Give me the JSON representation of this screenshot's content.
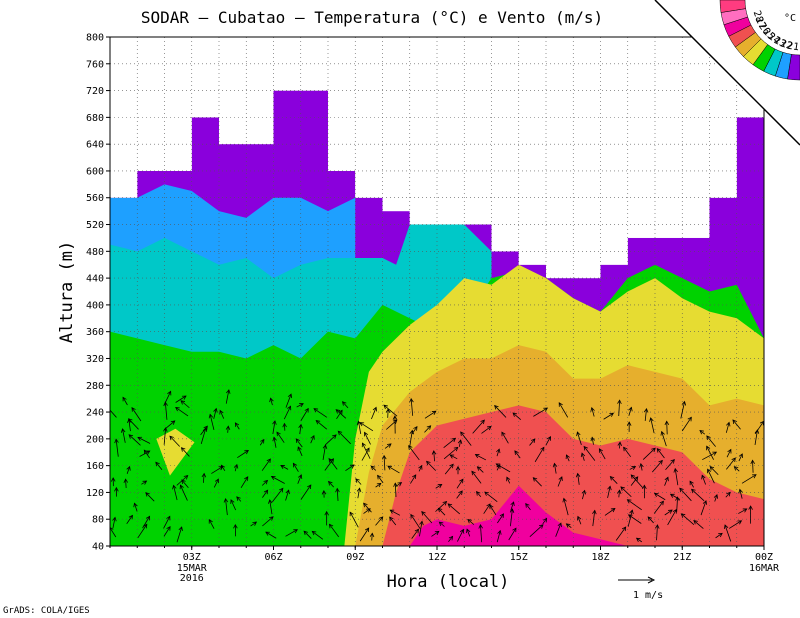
{
  "chart_data": {
    "type": "heatmap",
    "title": "SODAR – Cubatao – Temperatura (°C) e Vento (m/s)",
    "xlabel": "Hora (local)",
    "ylabel": "Altura (m)",
    "x_range_hours": [
      0,
      24
    ],
    "ylim": [
      40,
      800
    ],
    "y_ticks": [
      40,
      80,
      120,
      160,
      200,
      240,
      280,
      320,
      360,
      400,
      440,
      480,
      520,
      560,
      600,
      640,
      680,
      720,
      760,
      800
    ],
    "x_ticks": [
      {
        "hour": 3,
        "label": "03Z",
        "sub1": "15MAR",
        "sub2": "2016"
      },
      {
        "hour": 6,
        "label": "06Z",
        "sub1": "",
        "sub2": ""
      },
      {
        "hour": 9,
        "label": "09Z",
        "sub1": "",
        "sub2": ""
      },
      {
        "hour": 12,
        "label": "12Z",
        "sub1": "",
        "sub2": ""
      },
      {
        "hour": 15,
        "label": "15Z",
        "sub1": "",
        "sub2": ""
      },
      {
        "hour": 18,
        "label": "18Z",
        "sub1": "",
        "sub2": ""
      },
      {
        "hour": 21,
        "label": "21Z",
        "sub1": "",
        "sub2": ""
      },
      {
        "hour": 24,
        "label": "00Z",
        "sub1": "16MAR",
        "sub2": ""
      }
    ],
    "grid": true,
    "top_envelope_m": [
      [
        0,
        560
      ],
      [
        1,
        600
      ],
      [
        3,
        680
      ],
      [
        4,
        640
      ],
      [
        6,
        720
      ],
      [
        8,
        600
      ],
      [
        9,
        560
      ],
      [
        10,
        540
      ],
      [
        11,
        520
      ],
      [
        13,
        520
      ],
      [
        14,
        480
      ],
      [
        15,
        460
      ],
      [
        16,
        440
      ],
      [
        17,
        440
      ],
      [
        18,
        460
      ],
      [
        19,
        500
      ],
      [
        21,
        500
      ],
      [
        22,
        560
      ],
      [
        23,
        680
      ],
      [
        24,
        680
      ]
    ],
    "isotherm_bounds_m": [
      {
        "temp": 21,
        "pts": [
          [
            3,
            600
          ],
          [
            4,
            640
          ],
          [
            5,
            600
          ],
          [
            6,
            640
          ],
          [
            7,
            720
          ],
          [
            8,
            600
          ],
          [
            8.5,
            600
          ]
        ]
      },
      {
        "temp": 22,
        "pts": [
          [
            0,
            560
          ],
          [
            1,
            560
          ],
          [
            2,
            580
          ],
          [
            3,
            570
          ],
          [
            4,
            540
          ],
          [
            5,
            530
          ],
          [
            6,
            560
          ],
          [
            7,
            560
          ],
          [
            8,
            540
          ],
          [
            9,
            560
          ]
        ]
      },
      {
        "temp": 23,
        "pts": [
          [
            0,
            490
          ],
          [
            1,
            480
          ],
          [
            2,
            500
          ],
          [
            3,
            480
          ],
          [
            4,
            460
          ],
          [
            5,
            470
          ],
          [
            6,
            440
          ],
          [
            7,
            460
          ],
          [
            8,
            470
          ],
          [
            9,
            470
          ],
          [
            10,
            470
          ],
          [
            10.5,
            460
          ],
          [
            11,
            520
          ],
          [
            12,
            520
          ],
          [
            13,
            520
          ],
          [
            14,
            480
          ]
        ]
      },
      {
        "temp": 24,
        "pts": [
          [
            0,
            360
          ],
          [
            1,
            350
          ],
          [
            2,
            340
          ],
          [
            3,
            330
          ],
          [
            4,
            330
          ],
          [
            5,
            320
          ],
          [
            6,
            340
          ],
          [
            7,
            320
          ],
          [
            8,
            360
          ],
          [
            9,
            350
          ],
          [
            10,
            400
          ],
          [
            11,
            380
          ],
          [
            12,
            360
          ],
          [
            13,
            380
          ],
          [
            14,
            440
          ],
          [
            15,
            450
          ],
          [
            16,
            440
          ],
          [
            17,
            410
          ],
          [
            18,
            390
          ],
          [
            19,
            440
          ],
          [
            20,
            460
          ],
          [
            21,
            440
          ],
          [
            22,
            420
          ],
          [
            23,
            430
          ],
          [
            24,
            350
          ]
        ]
      },
      {
        "temp": 25,
        "pts": [
          [
            8.6,
            40
          ],
          [
            9,
            200
          ],
          [
            9.5,
            300
          ],
          [
            10,
            330
          ],
          [
            11,
            370
          ],
          [
            12,
            400
          ],
          [
            13,
            440
          ],
          [
            14,
            430
          ],
          [
            15,
            460
          ],
          [
            16,
            440
          ],
          [
            17,
            410
          ],
          [
            18,
            390
          ],
          [
            19,
            420
          ],
          [
            20,
            440
          ],
          [
            21,
            410
          ],
          [
            22,
            390
          ],
          [
            23,
            380
          ],
          [
            24,
            350
          ]
        ]
      },
      {
        "temp": 26,
        "pts": [
          [
            9,
            40
          ],
          [
            9.5,
            150
          ],
          [
            10,
            220
          ],
          [
            11,
            270
          ],
          [
            12,
            300
          ],
          [
            13,
            320
          ],
          [
            14,
            320
          ],
          [
            15,
            340
          ],
          [
            16,
            330
          ],
          [
            17,
            290
          ],
          [
            18,
            290
          ],
          [
            19,
            310
          ],
          [
            20,
            300
          ],
          [
            21,
            290
          ],
          [
            22,
            250
          ],
          [
            23,
            260
          ],
          [
            24,
            250
          ]
        ]
      },
      {
        "temp": 27,
        "pts": [
          [
            10,
            40
          ],
          [
            10.5,
            120
          ],
          [
            11,
            180
          ],
          [
            12,
            220
          ],
          [
            13,
            230
          ],
          [
            14,
            240
          ],
          [
            15,
            250
          ],
          [
            16,
            240
          ],
          [
            17,
            200
          ],
          [
            18,
            190
          ],
          [
            19,
            200
          ],
          [
            20,
            190
          ],
          [
            21,
            180
          ],
          [
            22,
            140
          ],
          [
            23,
            120
          ],
          [
            24,
            110
          ]
        ]
      },
      {
        "temp": 28,
        "pts": [
          [
            11,
            40
          ],
          [
            11.5,
            70
          ],
          [
            12,
            80
          ],
          [
            13,
            70
          ],
          [
            14,
            80
          ],
          [
            15,
            130
          ],
          [
            16,
            90
          ],
          [
            17,
            60
          ],
          [
            18,
            50
          ],
          [
            19,
            40
          ]
        ]
      }
    ],
    "colorbar": {
      "unit": "°C",
      "labels": [
        "21",
        "22",
        "23",
        "24",
        "25",
        "26",
        "27",
        "28"
      ]
    },
    "wind_reference_label": "1  m/s"
  },
  "footer_credit": "GrADS: COLA/IGES",
  "colors": {
    "c21": "#8a00dc",
    "c22": "#1ea0ff",
    "c23": "#00c8c8",
    "c24": "#00d200",
    "c25": "#e6dc32",
    "c26": "#e6af2d",
    "c27": "#f05050",
    "c28": "#f0009e",
    "c20": "#ff6ec0",
    "c29": "#ff3c80"
  }
}
